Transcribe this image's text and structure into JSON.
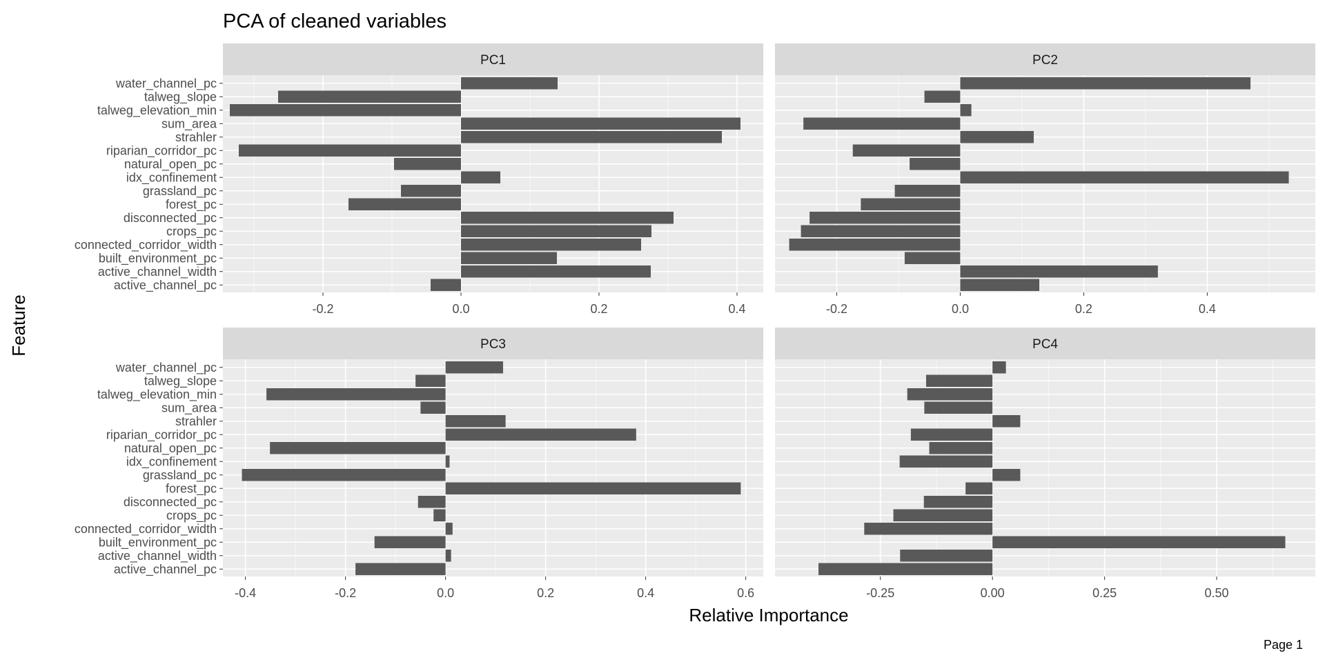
{
  "page": {
    "label": "Page 1"
  },
  "colors": {
    "bar": "#595959",
    "panel_bg": "#EBEBEB",
    "grid_major": "#FFFFFF",
    "strip_bg": "#D9D9D9"
  },
  "chart_data": {
    "type": "bar",
    "orientation": "horizontal",
    "title": "PCA of cleaned variables",
    "xlabel": "Relative Importance",
    "ylabel": "Feature",
    "grid": true,
    "legend": "none",
    "categories": [
      "water_channel_pc",
      "talweg_slope",
      "talweg_elevation_min",
      "sum_area",
      "strahler",
      "riparian_corridor_pc",
      "natural_open_pc",
      "idx_confinement",
      "grassland_pc",
      "forest_pc",
      "disconnected_pc",
      "crops_pc",
      "connected_corridor_width",
      "built_environment_pc",
      "active_channel_width",
      "active_channel_pc"
    ],
    "panels": [
      {
        "name": "PC1",
        "xlim": [
          -0.345,
          0.438
        ],
        "ticks": [
          -0.2,
          0.0,
          0.2,
          0.4
        ],
        "tick_labels": [
          "-0.2",
          "0.0",
          "0.2",
          "0.4"
        ],
        "values": [
          0.14,
          -0.265,
          -0.335,
          0.405,
          0.378,
          -0.322,
          -0.097,
          0.057,
          -0.087,
          -0.163,
          0.308,
          0.276,
          0.261,
          0.139,
          0.275,
          -0.044
        ]
      },
      {
        "name": "PC2",
        "xlim": [
          -0.3,
          0.575
        ],
        "ticks": [
          -0.2,
          0.0,
          0.2,
          0.4
        ],
        "tick_labels": [
          "-0.2",
          "0.0",
          "0.2",
          "0.4"
        ],
        "values": [
          0.47,
          -0.058,
          0.018,
          -0.254,
          0.119,
          -0.174,
          -0.082,
          0.532,
          -0.106,
          -0.161,
          -0.244,
          -0.258,
          -0.277,
          -0.09,
          0.32,
          0.128
        ]
      },
      {
        "name": "PC3",
        "xlim": [
          -0.445,
          0.635
        ],
        "ticks": [
          -0.4,
          -0.2,
          0.0,
          0.2,
          0.4,
          0.6
        ],
        "tick_labels": [
          "-0.4",
          "-0.2",
          "0.0",
          "0.2",
          "0.4",
          "0.6"
        ],
        "values": [
          0.115,
          -0.06,
          -0.358,
          -0.05,
          0.12,
          0.381,
          -0.351,
          0.008,
          -0.407,
          0.59,
          -0.055,
          -0.024,
          0.014,
          -0.142,
          0.011,
          -0.18
        ]
      },
      {
        "name": "PC4",
        "xlim": [
          -0.485,
          0.72
        ],
        "ticks": [
          -0.25,
          0.0,
          0.25,
          0.5
        ],
        "tick_labels": [
          "-0.25",
          "0.00",
          "0.25",
          "0.50"
        ],
        "values": [
          0.03,
          -0.148,
          -0.19,
          -0.152,
          0.062,
          -0.182,
          -0.141,
          -0.207,
          0.062,
          -0.06,
          -0.153,
          -0.221,
          -0.286,
          0.653,
          -0.206,
          -0.388
        ]
      }
    ]
  }
}
